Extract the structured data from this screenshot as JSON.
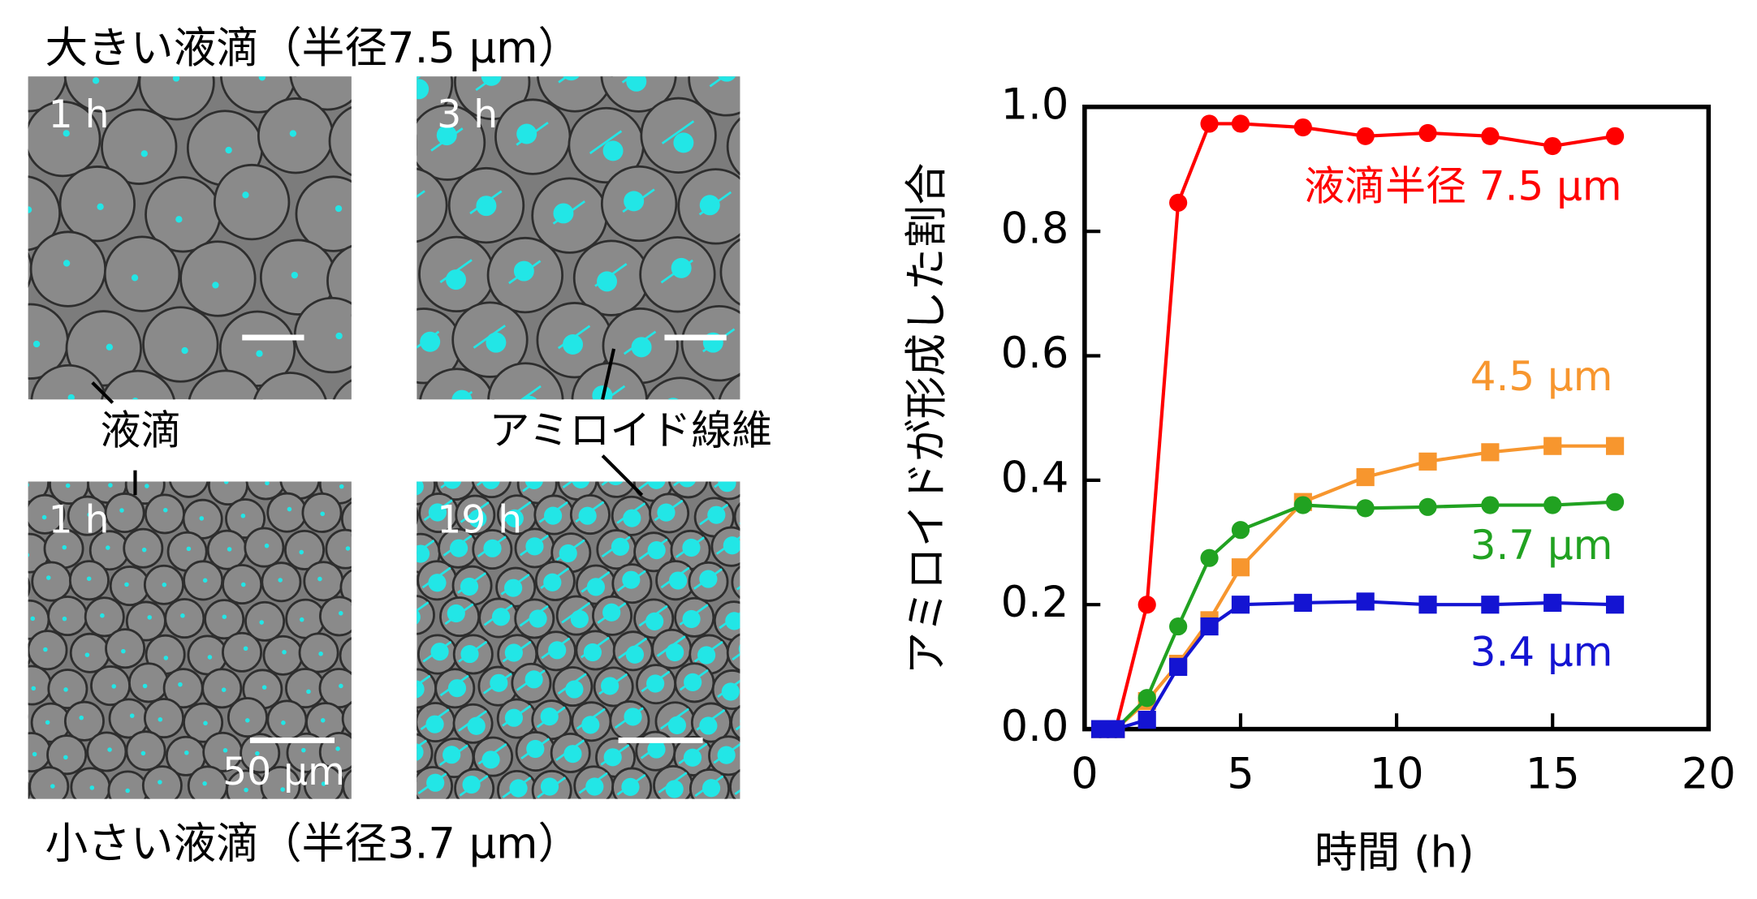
{
  "panels": {
    "large_title": "大きい液滴（半径7.5 µm）",
    "small_title": "小さい液滴（半径3.7 µm）",
    "time_labels": [
      "1 h",
      "3 h",
      "1 h",
      "19 h"
    ],
    "droplet_label": "液滴",
    "fibril_label": "アミロイド線維",
    "scale_label": "50 µm"
  },
  "chart_data": {
    "type": "line",
    "x_label": "時間 (h)",
    "y_label": "アミロイドが形成した割合",
    "x": [
      0.5,
      1,
      2,
      3,
      4,
      5,
      7,
      9,
      11,
      13,
      15,
      17
    ],
    "series": [
      {
        "name": "液滴半径 7.5 µm",
        "color": "#ff0000",
        "marker": "circle",
        "values": [
          0,
          0,
          0.2,
          0.846,
          0.973,
          0.973,
          0.967,
          0.953,
          0.958,
          0.953,
          0.937,
          0.953
        ]
      },
      {
        "name": "4.5 µm",
        "color": "#f7962e",
        "marker": "square",
        "values": [
          0,
          0,
          0.045,
          0.105,
          0.175,
          0.26,
          0.365,
          0.405,
          0.43,
          0.445,
          0.455,
          0.455
        ]
      },
      {
        "name": "3.7 µm",
        "color": "#21a221",
        "marker": "circle",
        "values": [
          0,
          0,
          0.05,
          0.165,
          0.275,
          0.32,
          0.36,
          0.355,
          0.357,
          0.36,
          0.36,
          0.365
        ]
      },
      {
        "name": "3.4 µm",
        "color": "#1414d2",
        "marker": "square",
        "values": [
          0,
          0,
          0.015,
          0.1,
          0.165,
          0.2,
          0.203,
          0.205,
          0.2,
          0.2,
          0.203,
          0.2
        ]
      }
    ],
    "xlim": [
      0,
      20
    ],
    "xticks": [
      0,
      5,
      10,
      15,
      20
    ],
    "ylim": [
      0,
      1
    ],
    "yticks": [
      {
        "value": 0,
        "label": "0.0"
      },
      0.2,
      0.4,
      0.6,
      0.8,
      {
        "value": 1,
        "label": "1.0"
      }
    ]
  }
}
